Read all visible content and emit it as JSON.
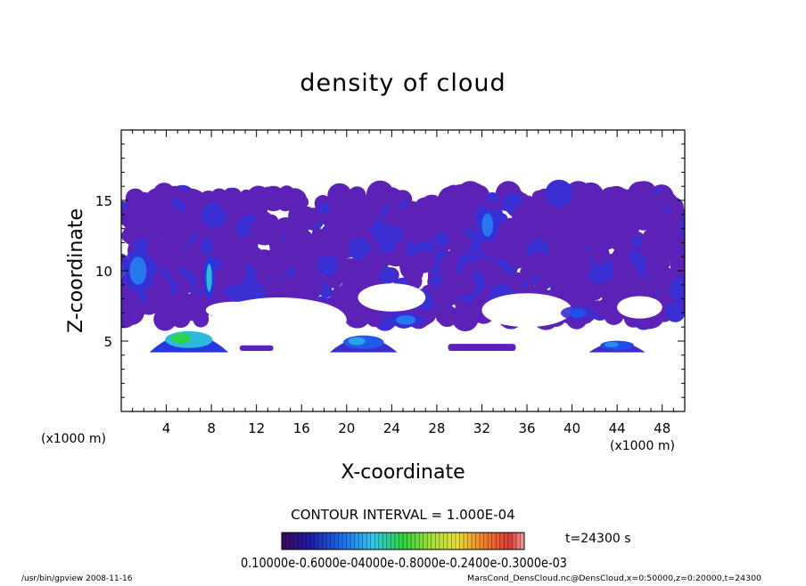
{
  "chart_data": {
    "type": "heatmap",
    "title": "density of cloud",
    "xlabel": "X-coordinate",
    "ylabel": "Z-coordinate",
    "x_unit": "(x1000 m)",
    "y_unit": "(x1000 m)",
    "xlim": [
      0,
      50
    ],
    "ylim": [
      0,
      20
    ],
    "x_ticks": [
      4,
      8,
      12,
      16,
      20,
      24,
      28,
      32,
      36,
      40,
      44,
      48
    ],
    "y_ticks": [
      5,
      10,
      15
    ],
    "contour_interval_label": "CONTOUR INTERVAL = 1.000E-04",
    "time_label": "t=24300 s",
    "colorbar_label_text": "0.10000e-0.6000e-04000e-0.8000e-0.2400e-0.3000e-03",
    "colorbar_range": [
      0.0,
      0.0003
    ],
    "cloud_regions": [
      {
        "kind": "upper-layer",
        "x": [
          0,
          50
        ],
        "z": [
          6.5,
          15.5
        ],
        "level": 2e-05
      },
      {
        "kind": "blob",
        "x": [
          0,
          3
        ],
        "z": [
          8.5,
          11.5
        ],
        "level": 0.00012
      },
      {
        "kind": "blob",
        "x": [
          7.3,
          8.3
        ],
        "z": [
          8,
          11
        ],
        "level": 0.00015
      },
      {
        "kind": "blob",
        "x": [
          31.5,
          33.5
        ],
        "z": [
          12,
          14.5
        ],
        "level": 0.00012
      },
      {
        "kind": "blob",
        "x": [
          23.5,
          27
        ],
        "z": [
          6,
          7
        ],
        "level": 0.00012
      },
      {
        "kind": "blob",
        "x": [
          39,
          42
        ],
        "z": [
          6.5,
          7.5
        ],
        "level": 0.0001
      },
      {
        "kind": "dome",
        "x": [
          2.5,
          9.5
        ],
        "z": [
          4.2,
          6.2
        ],
        "level": 0.0002
      },
      {
        "kind": "dome",
        "x": [
          18.5,
          24.5
        ],
        "z": [
          4.2,
          5.8
        ],
        "level": 0.00014
      },
      {
        "kind": "dome",
        "x": [
          41.5,
          46.5
        ],
        "z": [
          4.2,
          5.3
        ],
        "level": 0.00013
      },
      {
        "kind": "strip",
        "x": [
          10.5,
          13.5
        ],
        "z": [
          4.3,
          4.7
        ],
        "level": 2e-05
      },
      {
        "kind": "strip",
        "x": [
          29,
          35
        ],
        "z": [
          4.3,
          4.8
        ],
        "level": 2e-05
      }
    ]
  },
  "footer": {
    "left": "/usr/bin/gpview   2008-11-16",
    "right": "MarsCond_DensCloud.nc@DensCloud,x=0:50000,z=0:20000,t=24300"
  }
}
